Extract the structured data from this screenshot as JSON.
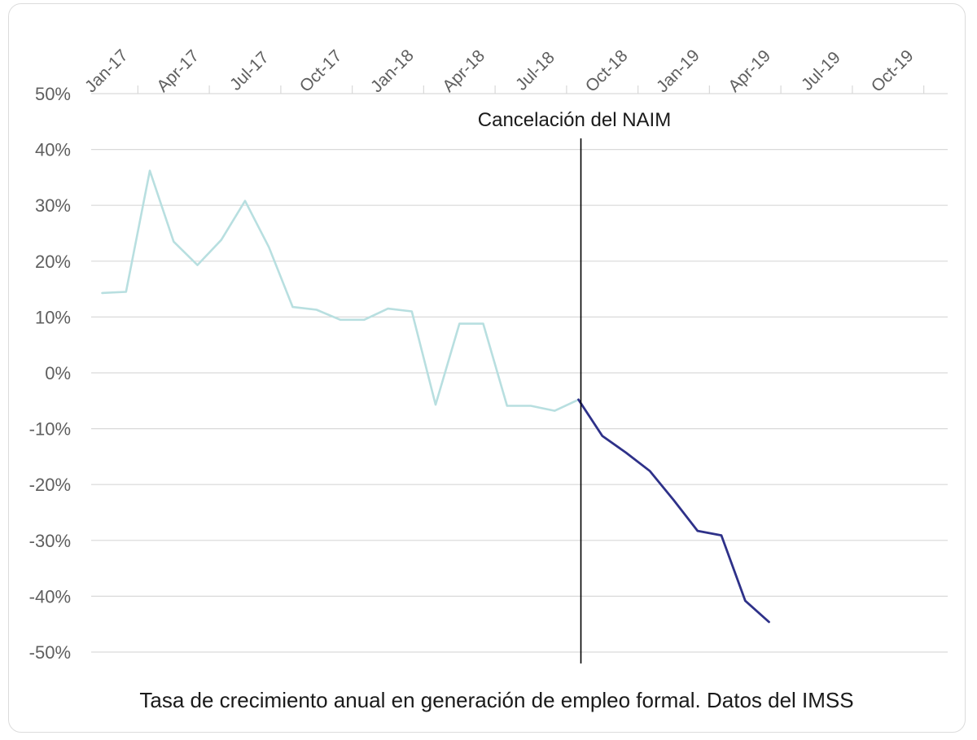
{
  "chart_data": {
    "type": "line",
    "title": "",
    "caption": "Tasa de crecimiento anual en generación de empleo formal. Datos del IMSS",
    "xlabel": "",
    "ylabel": "",
    "x_tick_labels": [
      "Jan-17",
      "Apr-17",
      "Jul-17",
      "Oct-17",
      "Jan-18",
      "Apr-18",
      "Jul-18",
      "Oct-18",
      "Jan-19",
      "Apr-19",
      "Jul-19",
      "Oct-19"
    ],
    "y_tick_labels": [
      "50%",
      "40%",
      "30%",
      "20%",
      "10%",
      "0%",
      "-10%",
      "-20%",
      "-30%",
      "-40%",
      "-50%"
    ],
    "ylim": [
      -50,
      50
    ],
    "xlim": [
      "Jan-17",
      "Dec-19"
    ],
    "grid": true,
    "x_axis_position": "top",
    "series": [
      {
        "color": "#b8dfe0",
        "points": [
          {
            "x": "2017-01",
            "y": 14.3
          },
          {
            "x": "2017-02",
            "y": 14.5
          },
          {
            "x": "2017-03",
            "y": 36.2
          },
          {
            "x": "2017-04",
            "y": 23.5
          },
          {
            "x": "2017-05",
            "y": 19.3
          },
          {
            "x": "2017-06",
            "y": 23.8
          },
          {
            "x": "2017-07",
            "y": 30.8
          },
          {
            "x": "2017-08",
            "y": 22.5
          },
          {
            "x": "2017-09",
            "y": 11.8
          },
          {
            "x": "2017-10",
            "y": 11.3
          },
          {
            "x": "2017-11",
            "y": 9.5
          },
          {
            "x": "2017-12",
            "y": 9.5
          },
          {
            "x": "2018-01",
            "y": 11.5
          },
          {
            "x": "2018-02",
            "y": 11.0
          },
          {
            "x": "2018-03",
            "y": -5.7
          },
          {
            "x": "2018-04",
            "y": 8.8
          },
          {
            "x": "2018-05",
            "y": 8.8
          },
          {
            "x": "2018-06",
            "y": -5.9
          },
          {
            "x": "2018-07",
            "y": -5.9
          },
          {
            "x": "2018-08",
            "y": -6.8
          },
          {
            "x": "2018-09",
            "y": -4.8
          }
        ]
      },
      {
        "color": "#2e3189",
        "points": [
          {
            "x": "2018-09",
            "y": -4.8
          },
          {
            "x": "2018-10",
            "y": -11.3
          },
          {
            "x": "2018-11",
            "y": -14.3
          },
          {
            "x": "2018-12",
            "y": -17.6
          },
          {
            "x": "2019-01",
            "y": -22.8
          },
          {
            "x": "2019-02",
            "y": -28.3
          },
          {
            "x": "2019-03",
            "y": -29.1
          },
          {
            "x": "2019-04",
            "y": -40.8
          },
          {
            "x": "2019-05",
            "y": -44.6
          }
        ]
      }
    ],
    "annotations": [
      {
        "text": "Cancelación del NAIM",
        "x": "2018-09",
        "line_color": "#000000"
      }
    ]
  }
}
